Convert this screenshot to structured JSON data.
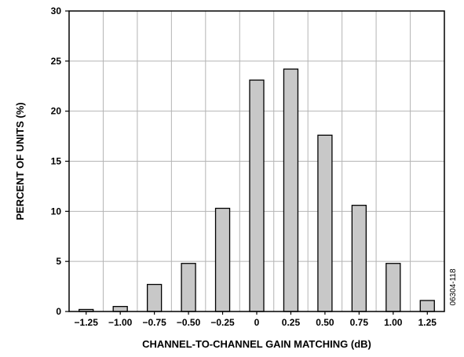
{
  "chart_data": {
    "type": "bar",
    "categories": [
      "−1.25",
      "−1.00",
      "−0.75",
      "−0.50",
      "−0.25",
      "0",
      "0.25",
      "0.50",
      "0.75",
      "1.00",
      "1.25"
    ],
    "values": [
      0.2,
      0.5,
      2.7,
      4.8,
      10.3,
      23.1,
      24.2,
      17.6,
      10.6,
      4.8,
      1.1
    ],
    "title": "",
    "xlabel": "CHANNEL-TO-CHANNEL GAIN MATCHING (dB)",
    "ylabel": "PERCENT OF UNITS (%)",
    "ylim": [
      0,
      30
    ],
    "yticks": [
      "0",
      "5",
      "10",
      "15",
      "20",
      "25",
      "30"
    ],
    "grid": true,
    "bar_color": "#c8c8c8",
    "bar_edge_color": "#000000",
    "figure_id": "06304-118"
  }
}
